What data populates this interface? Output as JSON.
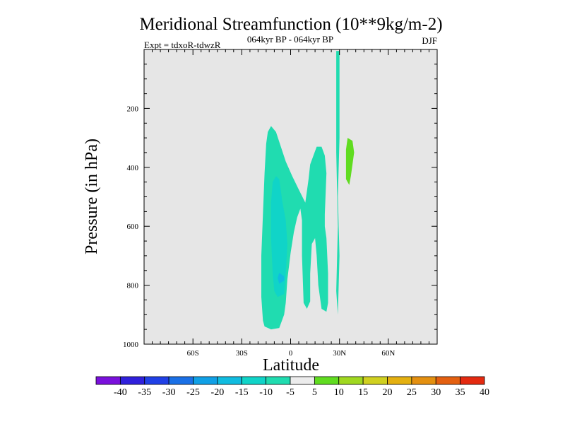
{
  "chart_data": {
    "type": "heatmap",
    "title": "Meridional Streamfunction (10**9kg/m-2)",
    "subtitle": "064kyr BP - 064kyr BP",
    "left_label": "Expt = tdxoR-tdwzR",
    "right_label": "DJF",
    "xlabel": "Latitude",
    "ylabel": "Pressure (in hPa)",
    "xlim": [
      -90,
      90
    ],
    "ylim": [
      1000,
      0
    ],
    "x_ticks": [
      {
        "value": -60,
        "label": "60S"
      },
      {
        "value": -30,
        "label": "30S"
      },
      {
        "value": 0,
        "label": "0"
      },
      {
        "value": 30,
        "label": "30N"
      },
      {
        "value": 60,
        "label": "60N"
      }
    ],
    "y_ticks": [
      {
        "value": 200,
        "label": "200"
      },
      {
        "value": 400,
        "label": "400"
      },
      {
        "value": 600,
        "label": "600"
      },
      {
        "value": 800,
        "label": "800"
      },
      {
        "value": 1000,
        "label": "1000"
      }
    ],
    "background_color": "#e6e6e6",
    "colorbar": {
      "labels": [
        "-40",
        "-35",
        "-30",
        "-25",
        "-20",
        "-15",
        "-10",
        "-5",
        "5",
        "10",
        "15",
        "20",
        "25",
        "30",
        "35",
        "40"
      ],
      "colors": [
        "#7a10dc",
        "#3020dc",
        "#2040e6",
        "#1a70e6",
        "#10a0e6",
        "#10bce0",
        "#10d4c8",
        "#20dcb0",
        "#ececec",
        "#60dc20",
        "#a0d820",
        "#d0d020",
        "#e4b010",
        "#e49010",
        "#e46010",
        "#e42a10"
      ]
    },
    "contours": [
      {
        "level": "-5 to -10",
        "color": "#20dcb0",
        "points": [
          [
            -16,
            940
          ],
          [
            -12,
            950
          ],
          [
            -7,
            945
          ],
          [
            -4,
            900
          ],
          [
            -3,
            860
          ],
          [
            -2,
            780
          ],
          [
            0,
            690
          ],
          [
            2,
            620
          ],
          [
            4,
            570
          ],
          [
            6,
            540
          ],
          [
            7,
            580
          ],
          [
            7,
            700
          ],
          [
            8,
            860
          ],
          [
            10,
            880
          ],
          [
            12,
            855
          ],
          [
            12,
            760
          ],
          [
            13,
            660
          ],
          [
            15,
            640
          ],
          [
            16,
            700
          ],
          [
            17,
            800
          ],
          [
            19,
            880
          ],
          [
            22,
            890
          ],
          [
            23,
            860
          ],
          [
            23,
            760
          ],
          [
            22,
            640
          ],
          [
            21,
            600
          ],
          [
            21,
            560
          ],
          [
            22,
            420
          ],
          [
            21,
            360
          ],
          [
            19,
            330
          ],
          [
            16,
            330
          ],
          [
            12,
            390
          ],
          [
            11,
            440
          ],
          [
            10,
            480
          ],
          [
            9,
            520
          ],
          [
            5,
            475
          ],
          [
            1,
            430
          ],
          [
            -3,
            380
          ],
          [
            -6,
            330
          ],
          [
            -9,
            280
          ],
          [
            -12,
            260
          ],
          [
            -14,
            280
          ],
          [
            -15,
            320
          ],
          [
            -16,
            420
          ],
          [
            -17,
            560
          ],
          [
            -18,
            700
          ],
          [
            -18,
            840
          ],
          [
            -17,
            920
          ]
        ]
      },
      {
        "level": "-5 to -10",
        "color": "#20dcb0",
        "points": [
          [
            28,
            5
          ],
          [
            30,
            5
          ],
          [
            30,
            150
          ],
          [
            30,
            300
          ],
          [
            29,
            500
          ],
          [
            30,
            700
          ],
          [
            29,
            900
          ],
          [
            28,
            820
          ],
          [
            29,
            600
          ],
          [
            28,
            350
          ],
          [
            28,
            100
          ]
        ]
      },
      {
        "level": "-10 to -15",
        "color": "#10d4c8",
        "points": [
          [
            -8,
            840
          ],
          [
            -4,
            830
          ],
          [
            -3,
            760
          ],
          [
            -2,
            660
          ],
          [
            -3,
            580
          ],
          [
            -5,
            520
          ],
          [
            -6,
            480
          ],
          [
            -7,
            440
          ],
          [
            -9,
            430
          ],
          [
            -11,
            450
          ],
          [
            -12,
            520
          ],
          [
            -12,
            640
          ],
          [
            -11,
            760
          ],
          [
            -10,
            820
          ]
        ]
      },
      {
        "level": "-15 to -20",
        "color": "#10bce0",
        "points": [
          [
            -7,
            795
          ],
          [
            -4,
            785
          ],
          [
            -4,
            770
          ],
          [
            -7,
            758
          ],
          [
            -8,
            775
          ]
        ]
      },
      {
        "level": "5 to 10",
        "color": "#60dc20",
        "points": [
          [
            35,
            300
          ],
          [
            38,
            310
          ],
          [
            39,
            350
          ],
          [
            38,
            390
          ],
          [
            37,
            430
          ],
          [
            36,
            460
          ],
          [
            34,
            440
          ],
          [
            34,
            390
          ],
          [
            34,
            340
          ]
        ]
      }
    ]
  }
}
